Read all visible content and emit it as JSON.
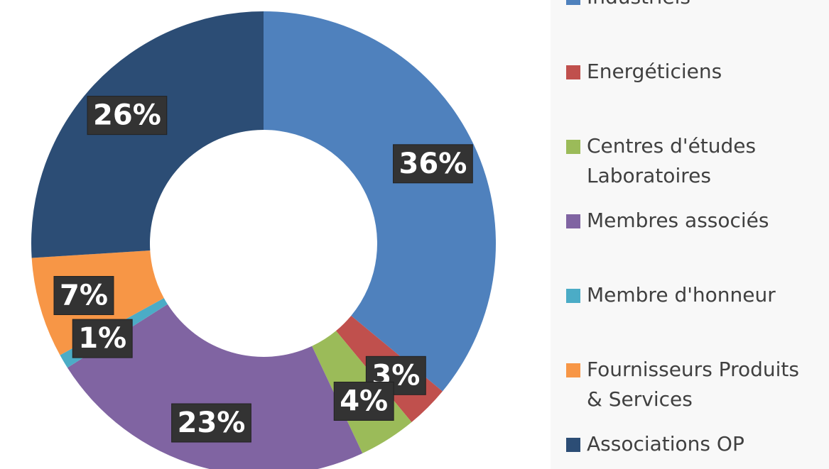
{
  "chart_data": {
    "type": "donut",
    "categories": [
      "Industriels",
      "Energéticiens",
      "Centres d'études Laboratoires",
      "Membres associés",
      "Membre d'honneur",
      "Fournisseurs Produits & Services",
      "Associations OP"
    ],
    "values": [
      36,
      3,
      4,
      23,
      1,
      7,
      26
    ],
    "value_labels": [
      "36%",
      "3%",
      "4%",
      "23%",
      "1%",
      "7%",
      "26%"
    ],
    "colors": [
      "#4f81bd",
      "#c0504d",
      "#9bbb59",
      "#8064a2",
      "#4bacc6",
      "#f79646",
      "#2c4d75"
    ],
    "legend": "right"
  }
}
